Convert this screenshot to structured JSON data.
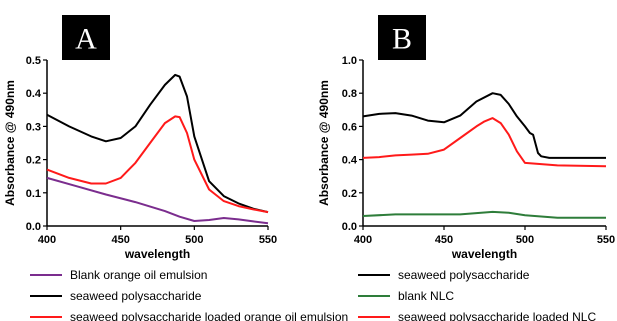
{
  "chart_data": [
    {
      "type": "line",
      "panel_label": "A",
      "xlabel": "wavelength",
      "ylabel": "Absorbance @ 490nm",
      "xlim": [
        400,
        550
      ],
      "ylim": [
        0.0,
        0.5
      ],
      "xticks": [
        "400",
        "450",
        "500",
        "550"
      ],
      "yticks": [
        "0.0",
        "0.1",
        "0.2",
        "0.3",
        "0.4",
        "0.5"
      ],
      "grid": false,
      "legend_position": "below",
      "series": [
        {
          "name": "Blank orange oil emulsion",
          "color": "#7b2d8e",
          "x": [
            400,
            420,
            440,
            460,
            480,
            490,
            500,
            510,
            520,
            530,
            540,
            550
          ],
          "y": [
            0.145,
            0.12,
            0.095,
            0.072,
            0.045,
            0.028,
            0.015,
            0.018,
            0.024,
            0.02,
            0.014,
            0.008
          ]
        },
        {
          "name": "seaweed polysaccharide",
          "color": "#000000",
          "x": [
            400,
            415,
            430,
            440,
            450,
            460,
            470,
            480,
            487,
            490,
            495,
            500,
            510,
            520,
            530,
            540,
            550
          ],
          "y": [
            0.335,
            0.3,
            0.27,
            0.255,
            0.265,
            0.3,
            0.365,
            0.425,
            0.455,
            0.45,
            0.39,
            0.27,
            0.135,
            0.09,
            0.068,
            0.052,
            0.042
          ]
        },
        {
          "name": "seaweed polysaccharide loaded orange oil emulsion",
          "color": "#ff1a1a",
          "x": [
            400,
            415,
            430,
            440,
            450,
            460,
            470,
            480,
            487,
            490,
            495,
            500,
            510,
            520,
            530,
            540,
            550
          ],
          "y": [
            0.17,
            0.145,
            0.128,
            0.128,
            0.145,
            0.19,
            0.25,
            0.31,
            0.33,
            0.328,
            0.28,
            0.2,
            0.11,
            0.075,
            0.06,
            0.05,
            0.042
          ]
        }
      ]
    },
    {
      "type": "line",
      "panel_label": "B",
      "xlabel": "wavelength",
      "ylabel": "Absorbance @ 490nm",
      "xlim": [
        400,
        550
      ],
      "ylim": [
        0.0,
        1.0
      ],
      "xticks": [
        "400",
        "450",
        "500",
        "550"
      ],
      "yticks": [
        "0.0",
        "0.2",
        "0.4",
        "0.6",
        "0.8",
        "1.0"
      ],
      "grid": false,
      "legend_position": "below",
      "series": [
        {
          "name": "seaweed polysaccharide",
          "color": "#000000",
          "x": [
            400,
            410,
            420,
            430,
            440,
            450,
            460,
            470,
            480,
            485,
            490,
            495,
            500,
            503,
            505,
            508,
            510,
            515,
            520,
            530,
            550
          ],
          "y": [
            0.66,
            0.675,
            0.68,
            0.665,
            0.635,
            0.625,
            0.665,
            0.75,
            0.8,
            0.79,
            0.735,
            0.66,
            0.6,
            0.56,
            0.55,
            0.44,
            0.42,
            0.41,
            0.41,
            0.41,
            0.41
          ]
        },
        {
          "name": "blank NLC",
          "color": "#2e7d3a",
          "x": [
            400,
            420,
            440,
            460,
            470,
            480,
            490,
            500,
            520,
            550
          ],
          "y": [
            0.06,
            0.07,
            0.07,
            0.07,
            0.078,
            0.085,
            0.08,
            0.065,
            0.05,
            0.05
          ]
        },
        {
          "name": "seaweed polysaccharide loaded NLC",
          "color": "#ff1a1a",
          "x": [
            400,
            410,
            420,
            430,
            440,
            450,
            460,
            470,
            475,
            480,
            485,
            490,
            495,
            500,
            520,
            550
          ],
          "y": [
            0.41,
            0.415,
            0.425,
            0.43,
            0.435,
            0.46,
            0.53,
            0.6,
            0.63,
            0.65,
            0.62,
            0.55,
            0.45,
            0.38,
            0.365,
            0.36
          ]
        }
      ]
    }
  ]
}
